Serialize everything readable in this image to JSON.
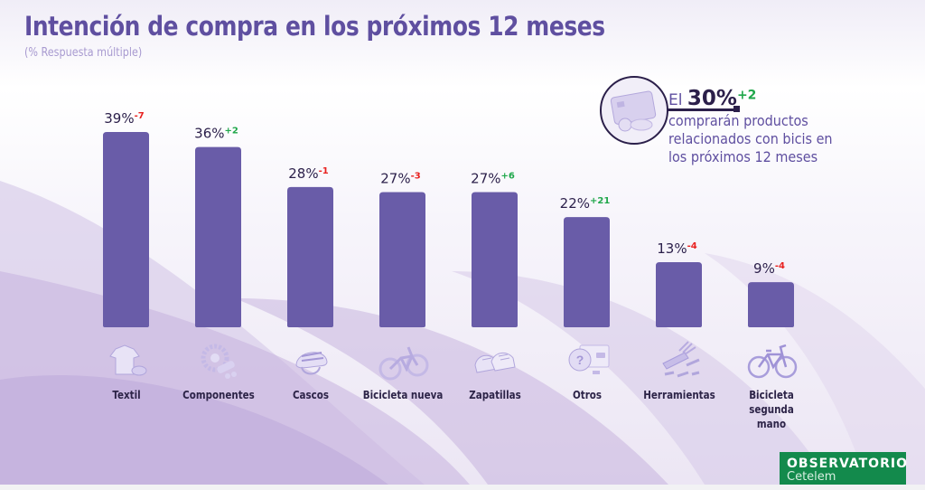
{
  "header": {
    "title": "Intención de compra en los próximos 12 meses",
    "subtitle": "(% Respuesta múltiple)"
  },
  "callout": {
    "prefix": "El",
    "value": "30%",
    "change": "+2",
    "text_lines": [
      "compraran productos",
      "relacionados con bicis en",
      "los próximos 12 meses"
    ],
    "icon": "credit-card-icon"
  },
  "colors": {
    "bar": "#695ca8",
    "title": "#5f4fa0",
    "value_text": "#2b1f4a",
    "positive_change": "#1fa74a",
    "negative_change": "#e8211f",
    "logo_bg": "#138a4c"
  },
  "logo": {
    "line1": "OBSERVATORIO",
    "line2": "Cetelem"
  },
  "chart_data": {
    "type": "bar",
    "title": "Intención de compra en los próximos 12 meses",
    "subtitle": "(% Respuesta múltiple)",
    "xlabel": "",
    "ylabel": "",
    "ylim": [
      0,
      39
    ],
    "grid": false,
    "legend": "none",
    "categories": [
      "Textil",
      "Componentes",
      "Cascos",
      "Bicicleta nueva",
      "Zapatillas",
      "Otros",
      "Herramientas",
      "Bicicleta segunda mano"
    ],
    "values": [
      39,
      36,
      28,
      27,
      27,
      22,
      13,
      9
    ],
    "value_labels": [
      "39%",
      "36%",
      "28%",
      "27%",
      "27%",
      "22%",
      "13%",
      "9%"
    ],
    "changes": [
      "-7",
      "+2",
      "-1",
      "-3",
      "+6",
      "+21",
      "-4",
      "-4"
    ],
    "category_icons": [
      "jersey-icon",
      "gear-components-icon",
      "helmet-icon",
      "new-bicycle-icon",
      "shoes-icon",
      "question-screen-icon",
      "tools-icon",
      "used-bicycle-icon"
    ],
    "category_label_lines": [
      [
        "Textil"
      ],
      [
        "Componentes"
      ],
      [
        "Cascos"
      ],
      [
        "Bicicleta nueva"
      ],
      [
        "Zapatillas"
      ],
      [
        "Otros"
      ],
      [
        "Herramientas"
      ],
      [
        "Bicicleta segunda",
        "mano"
      ]
    ]
  }
}
